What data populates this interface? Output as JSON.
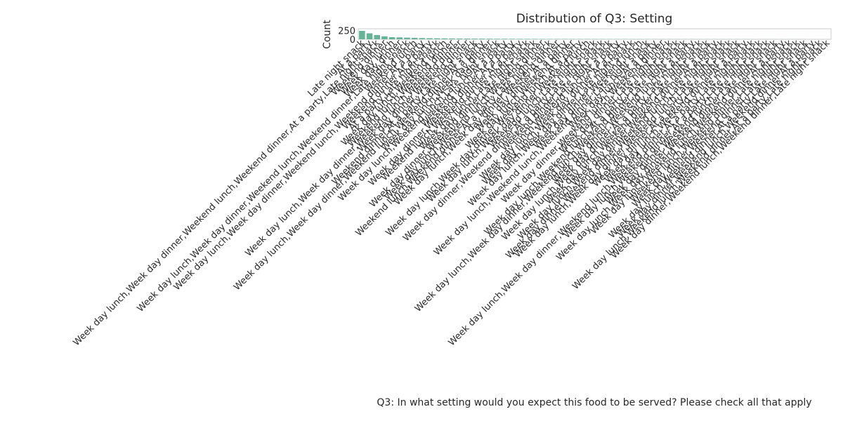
{
  "chart_data": {
    "type": "bar",
    "title": "Distribution of Q3: Setting",
    "xlabel": "Q3: In what setting would you expect this food to be served? Please check all that apply",
    "ylabel": "Count",
    "ylim": [
      0,
      300
    ],
    "yticks": [
      0,
      250
    ],
    "grid": false,
    "bar_color": "#66b398",
    "categories": [
      "Late night snack",
      "At a party",
      "Week day lunch,Week day dinner,Weekend lunch,Weekend dinner,At a party,Late night snack",
      "Weekend dinner",
      "Week day lunch",
      "Week day dinner",
      "Week day lunch,Week day dinner,Weekend lunch,Weekend dinner,Late night snack",
      "Weekend lunch",
      "Week day lunch,Week day dinner,Weekend lunch,Weekend dinner,At a party",
      "Weekend dinner,At a party",
      "At a party,Late night snack",
      "Week day lunch,Weekend lunch",
      "Weekend lunch,Weekend dinner",
      "Week day lunch,Week day dinner,Weekend lunch,Weekend dinner",
      "Week day dinner,Weekend dinner",
      "Weekend dinner,At a party,Late night snack",
      "Week day lunch,Week day dinner,Weekend lunch,Weekend dinner,At a party",
      "Week day lunch,Week day dinner",
      "Week day lunch,Weekend lunch,Late night snack",
      "Weekend lunch,At a party",
      "Week day dinner,Weekend dinner,At a party",
      "Weekend lunch,Weekend dinner,At a party",
      "Week day lunch,Late night snack",
      "Week day dinner,Weekend dinner,Late night snack",
      "Week day lunch,Weekend lunch,Weekend dinner",
      "Weekend lunch,Weekend dinner,At a party,Late night snack",
      "Week day lunch,Week day dinner,Weekend dinner",
      "Week day dinner,At a party",
      "Week day lunch,Weekend dinner",
      "Week day lunch,Week day dinner,Weekend lunch,At a party",
      "Week day lunch,Week day dinner,Weekend lunch",
      "Weekend lunch,Late night snack",
      "Week day dinner,Weekend dinner,At a party,Late night snack",
      "Weekend dinner,Late night snack",
      "Week day lunch,Weekend lunch,At a party",
      "Week day lunch,Week day dinner,At a party",
      "Week day lunch,Week day dinner,Late night snack",
      "Week day dinner,Weekend lunch",
      "Week day lunch,Weekend lunch,Weekend dinner,Late night snack",
      "Week day lunch,At a party",
      "Week day dinner,Weekend lunch,Weekend dinner",
      "Week day dinner,Late night snack",
      "Week day lunch,Weekend lunch,At a party,Late night snack",
      "Week day lunch,Week day dinner,Weekend lunch,Weekend dinner,Late night snack",
      "Week day dinner,Weekend lunch,At a party",
      "Week day lunch,Week day dinner,At a party,Late night snack",
      "Week day lunch,Weekend dinner,Late night snack",
      "Week day lunch,Week day dinner,Weekend dinner,At a party",
      "Week day dinner,Weekend dinner,Weekend lunch,Late night snack",
      "Week day lunch,Week day dinner,Weekend lunch,Late night snack",
      "Week day dinner,At a party,Late night snack",
      "Week day lunch,Weekend dinner,At a party",
      "Week day lunch,Week day dinner,Weekend lunch,Weekend dinner,At a party,Late night snack",
      "Week day lunch,Weekend dinner,At a party,Late night snack",
      "Week day dinner,Weekend lunch,Late night snack",
      "Week day lunch,Week day dinner,Weekend dinner,Late night snack",
      "Week day lunch,Weekend lunch,Weekend dinner,At a party",
      "Weekend lunch,Weekend dinner,Late night snack",
      "Week day dinner,Weekend dinner,Late night snack",
      "Week day lunch,Weekend dinner,At a party,Late night snack",
      "Week day dinner,Weekend lunch,Weekend dinner,At a party",
      "Week day lunch,Weekend lunch,Weekend dinner,At a party,Late night snack",
      "Week day dinner,Weekend lunch,Weekend dinner,Late night snack"
    ],
    "values": [
      240,
      170,
      120,
      85,
      60,
      55,
      48,
      42,
      35,
      30,
      28,
      26,
      24,
      22,
      20,
      19,
      18,
      17,
      16,
      15,
      14,
      13,
      12,
      11,
      10,
      10,
      9,
      9,
      8,
      8,
      7,
      7,
      7,
      6,
      6,
      6,
      5,
      5,
      5,
      5,
      4,
      4,
      4,
      4,
      4,
      3,
      3,
      3,
      3,
      3,
      3,
      3,
      2,
      2,
      2,
      2,
      2,
      2,
      2,
      2,
      1,
      1,
      1
    ]
  }
}
